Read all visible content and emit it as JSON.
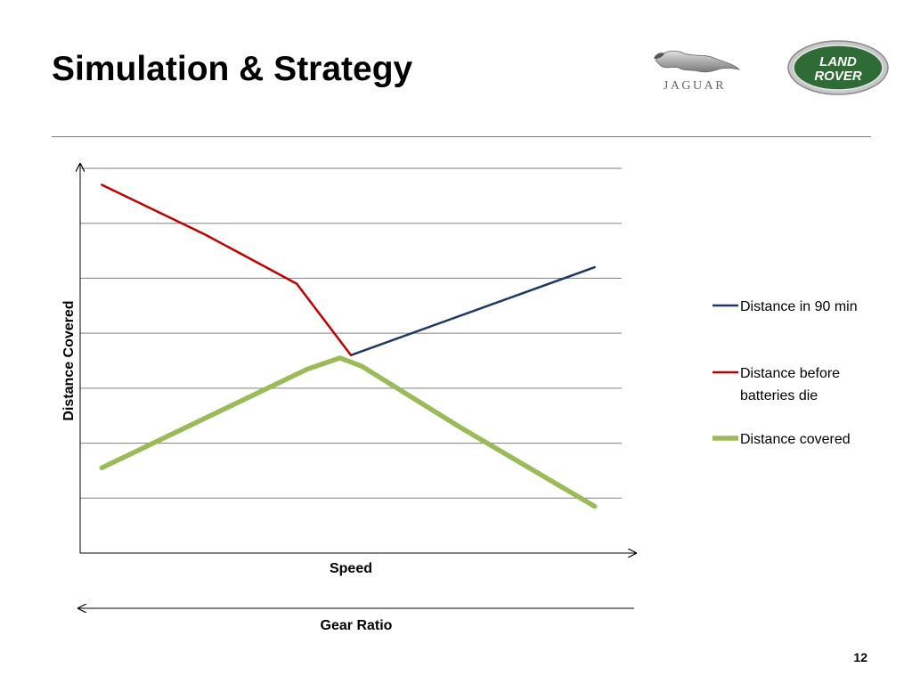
{
  "slide": {
    "title": "Simulation & Strategy",
    "page_number": "12"
  },
  "logos": [
    {
      "name": "jaguar-logo",
      "text": "JAGUAR"
    },
    {
      "name": "land-rover-logo",
      "text_line1": "LAND",
      "text_line2": "ROVER"
    }
  ],
  "colors": {
    "distance_in_90_min": "#1f3864",
    "distance_before_batteries_die": "#c00000",
    "distance_covered": "#9bbb59",
    "gridline": "#808080",
    "axis": "#000000",
    "land_rover_green": "#2e6b35"
  },
  "chart_data": {
    "type": "line",
    "title": "",
    "xlabel": "Speed",
    "ylabel": "Distance Covered",
    "secondary_xlabel": "Gear Ratio",
    "secondary_x_direction": "reversed",
    "xlim": [
      0,
      1
    ],
    "ylim": [
      0,
      7
    ],
    "grid": true,
    "gridlines_y": [
      1,
      2,
      3,
      4,
      5,
      6,
      7
    ],
    "ticks_visible": false,
    "legend_position": "right",
    "series": [
      {
        "name": "Distance in 90 min",
        "color": "#1f3864",
        "x": [
          0.5,
          0.95
        ],
        "y": [
          3.6,
          5.2
        ]
      },
      {
        "name": "Distance before batteries die",
        "color": "#c00000",
        "x": [
          0.04,
          0.23,
          0.4,
          0.5
        ],
        "y": [
          6.7,
          5.8,
          4.9,
          3.6
        ]
      },
      {
        "name": "Distance covered",
        "color": "#9bbb59",
        "x": [
          0.04,
          0.42,
          0.48,
          0.52,
          0.7,
          0.95
        ],
        "y": [
          1.55,
          3.35,
          3.55,
          3.4,
          2.3,
          0.85
        ]
      }
    ]
  }
}
